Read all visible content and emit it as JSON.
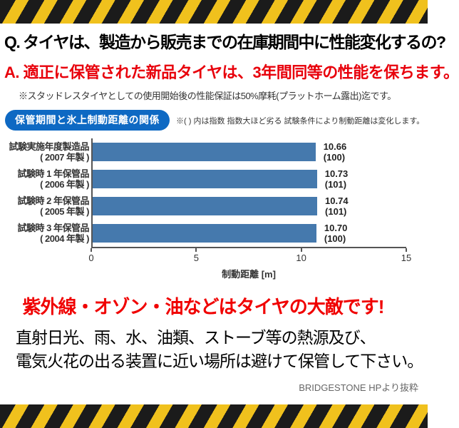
{
  "qa": {
    "question": "Q. タイヤは、製造から販売までの在庫期間中に性能変化するの?",
    "answer": "A. 適正に保管された新品タイヤは、3年間同等の性能を保ちます。",
    "note": "※スタッドレスタイヤとしての使用開始後の性能保証は50%摩耗(プラットホーム露出)迄です。"
  },
  "chart_header": {
    "badge": "保管期間と氷上制動距離の関係",
    "note": "※( ) 内は指数 指数大ほど劣る  試験条件により制動距離は変化します。"
  },
  "chart_data": {
    "type": "bar",
    "orientation": "horizontal",
    "title": "保管期間と氷上制動距離の関係",
    "xlabel": "制動距離 [m]",
    "xlim": [
      0,
      15
    ],
    "xticks": [
      0,
      5,
      10,
      15
    ],
    "bar_color": "#4579ad",
    "grid": false,
    "categories": [
      "試験実施年度製造品 (2007年製)",
      "試験時1年保管品 (2006年製)",
      "試験時2年保管品 (2005年製)",
      "試験時3年保管品 (2004年製)"
    ],
    "values": [
      10.66,
      10.73,
      10.74,
      10.7
    ],
    "rows": [
      {
        "label1": "試験実施年度製造品",
        "label2": "( 2007 年製 )",
        "value": 10.66,
        "value_label": "10.66",
        "index_label": "(100)"
      },
      {
        "label1": "試験時 1 年保管品",
        "label2": "( 2006 年製 )",
        "value": 10.73,
        "value_label": "10.73",
        "index_label": "(101)"
      },
      {
        "label1": "試験時 2 年保管品",
        "label2": "( 2005 年製 )",
        "value": 10.74,
        "value_label": "10.74",
        "index_label": "(101)"
      },
      {
        "label1": "試験時 3 年保管品",
        "label2": "( 2004 年製 )",
        "value": 10.7,
        "value_label": "10.70",
        "index_label": "(100)"
      }
    ]
  },
  "warning": {
    "headline": "紫外線・オゾン・油などはタイヤの大敵です!",
    "line1": "直射日光、雨、水、油類、ストーブ等の熱源及び、",
    "line2": "電気火花の出る装置に近い場所は避けて保管して下さい。"
  },
  "credit": "BRIDGESTONE HPより抜粋",
  "colors": {
    "accent_red": "#e8000b",
    "headline_red": "#f00000",
    "badge_blue": "#0e69c3",
    "bar_blue": "#4579ad",
    "hazard_yellow": "#f0c11d",
    "hazard_black": "#1b1b1b"
  }
}
